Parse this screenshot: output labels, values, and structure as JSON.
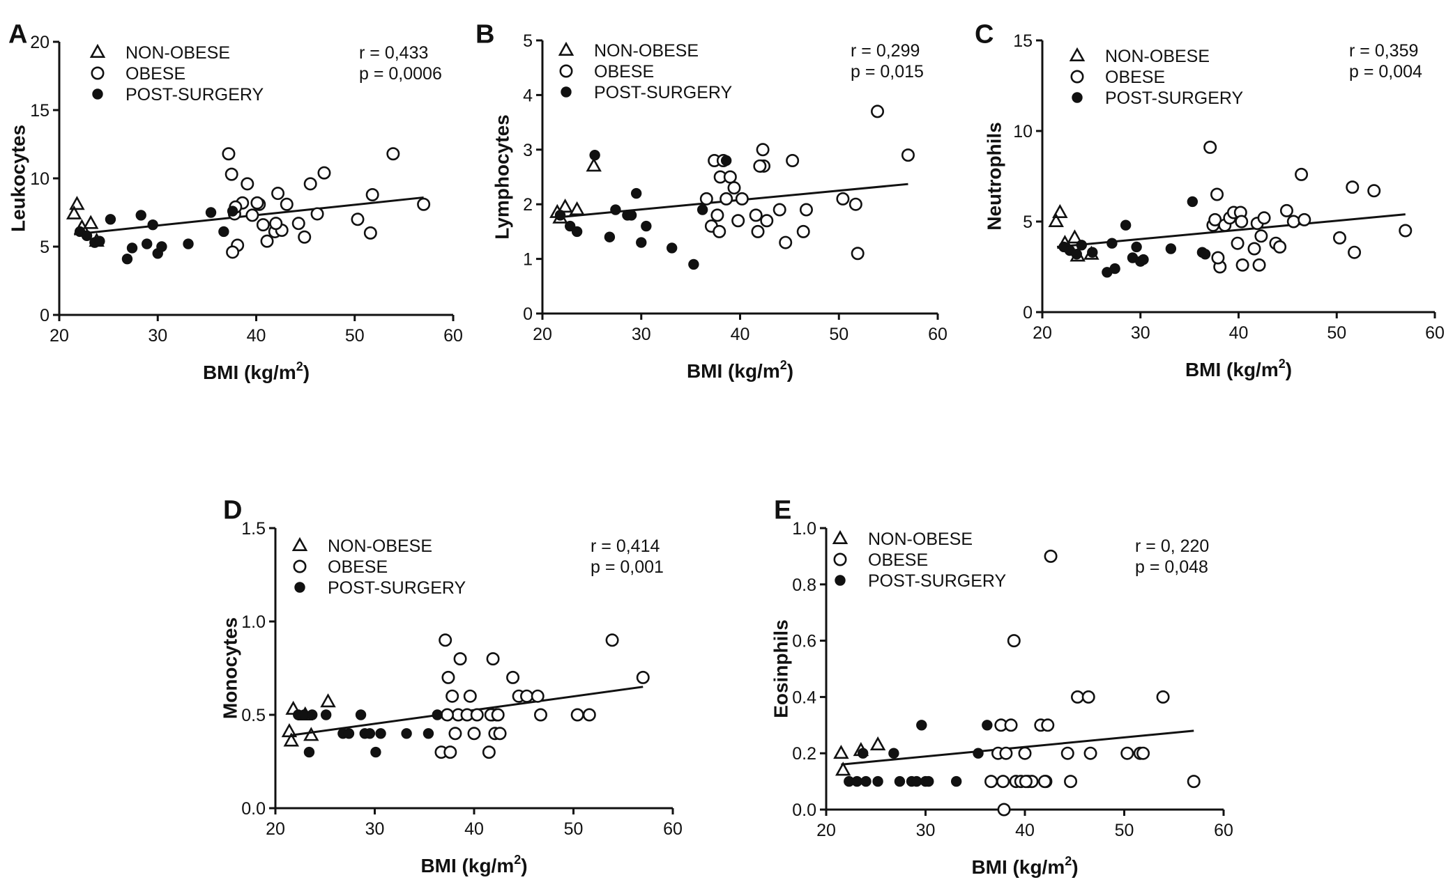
{
  "colors": {
    "ink": "#111111",
    "background": "#ffffff"
  },
  "marker_names": [
    "triangle-open",
    "circle-open",
    "circle-filled"
  ],
  "chart_data": [
    {
      "panel": "A",
      "type": "scatter",
      "ylabel": "Leukocytes",
      "xlabel": "BMI (kg/m",
      "xlabel_sup": "2",
      "xlabel_end": ")",
      "xlim": [
        20,
        60
      ],
      "ylim": [
        0,
        20
      ],
      "xticks": [
        "20",
        "30",
        "40",
        "50",
        "60"
      ],
      "yticks": [
        "0",
        "5",
        "10",
        "15",
        "20"
      ],
      "legend": [
        "NON-OBESE",
        "OBESE",
        "POST-SURGERY"
      ],
      "stat_r": "r = 0,433",
      "stat_p": "p = 0,0006",
      "fit": {
        "x": [
          21.5,
          57
        ],
        "y": [
          5.9,
          8.6
        ]
      },
      "series": [
        {
          "name": "NON-OBESE",
          "x": [
            21.5,
            21.8,
            22.3,
            23.2,
            23.8
          ],
          "y": [
            7.4,
            8.1,
            6.4,
            6.7,
            5.4
          ]
        },
        {
          "name": "OBESE",
          "x": [
            37.2,
            37.5,
            37.8,
            38.1,
            38.6,
            39.1,
            39.6,
            40.3,
            40.7,
            41.1,
            41.9,
            42.2,
            42.6,
            43.1,
            44.3,
            44.9,
            45.5,
            46.2,
            46.9,
            50.3,
            51.6,
            51.8,
            53.9,
            57.0,
            37.6,
            40.1,
            42.0,
            37.9
          ],
          "y": [
            11.8,
            10.3,
            7.4,
            5.1,
            8.2,
            9.6,
            7.3,
            8.1,
            6.6,
            5.4,
            6.1,
            8.9,
            6.2,
            8.1,
            6.7,
            5.7,
            9.6,
            7.4,
            10.4,
            7.0,
            6.0,
            8.8,
            11.8,
            8.1,
            4.6,
            8.2,
            6.7,
            7.9
          ]
        },
        {
          "name": "POST-SURGERY",
          "x": [
            22.1,
            22.8,
            23.6,
            24.1,
            25.2,
            26.9,
            27.4,
            28.3,
            28.9,
            29.5,
            30.0,
            30.4,
            33.1,
            35.4,
            36.7,
            37.6
          ],
          "y": [
            6.1,
            5.8,
            5.3,
            5.4,
            7.0,
            4.1,
            4.9,
            7.3,
            5.2,
            6.6,
            4.5,
            5.0,
            5.2,
            7.5,
            6.1,
            7.6
          ]
        }
      ]
    },
    {
      "panel": "B",
      "type": "scatter",
      "ylabel": "Lymphocytes",
      "xlabel": "BMI (kg/m",
      "xlabel_sup": "2",
      "xlabel_end": ")",
      "xlim": [
        20,
        60
      ],
      "ylim": [
        0,
        5
      ],
      "xticks": [
        "20",
        "30",
        "40",
        "50",
        "60"
      ],
      "yticks": [
        "0",
        "1",
        "2",
        "3",
        "4",
        "5"
      ],
      "legend": [
        "NON-OBESE",
        "OBESE",
        "POST-SURGERY"
      ],
      "stat_r": "r = 0,299",
      "stat_p": "p = 0,015",
      "fit": {
        "x": [
          21.5,
          57
        ],
        "y": [
          1.76,
          2.37
        ]
      },
      "series": [
        {
          "name": "NON-OBESE",
          "x": [
            21.5,
            21.8,
            22.3,
            23.5,
            25.2
          ],
          "y": [
            1.85,
            1.75,
            1.95,
            1.9,
            2.7
          ]
        },
        {
          "name": "OBESE",
          "x": [
            36.6,
            37.1,
            37.4,
            37.7,
            38.0,
            38.3,
            38.6,
            39.0,
            39.4,
            39.8,
            40.2,
            41.6,
            42.1,
            42.4,
            42.7,
            44.0,
            44.6,
            45.3,
            46.4,
            46.7,
            50.4,
            51.7,
            51.9,
            53.9,
            57.0,
            37.9,
            42.3,
            41.8,
            42.0
          ],
          "y": [
            2.1,
            1.6,
            2.8,
            1.8,
            2.5,
            2.8,
            2.1,
            2.5,
            2.3,
            1.7,
            2.1,
            1.8,
            2.7,
            2.7,
            1.7,
            1.9,
            1.3,
            2.8,
            1.5,
            1.9,
            2.1,
            2.0,
            1.1,
            3.7,
            2.9,
            1.5,
            3.0,
            1.5,
            2.7
          ]
        },
        {
          "name": "POST-SURGERY",
          "x": [
            21.8,
            22.8,
            23.5,
            25.3,
            26.8,
            27.4,
            28.6,
            29.0,
            29.5,
            30.0,
            30.5,
            33.1,
            35.3,
            36.2,
            38.6
          ],
          "y": [
            1.8,
            1.6,
            1.5,
            2.9,
            1.4,
            1.9,
            1.8,
            1.8,
            2.2,
            1.3,
            1.6,
            1.2,
            0.9,
            1.9,
            2.8
          ]
        }
      ]
    },
    {
      "panel": "C",
      "type": "scatter",
      "ylabel": "Neutrophils",
      "xlabel": "BMI (kg/m",
      "xlabel_sup": "2",
      "xlabel_end": ")",
      "xlim": [
        20,
        60
      ],
      "ylim": [
        0,
        15
      ],
      "xticks": [
        "20",
        "30",
        "40",
        "50",
        "60"
      ],
      "yticks": [
        "0",
        "5",
        "10",
        "15"
      ],
      "legend": [
        "NON-OBESE",
        "OBESE",
        "POST-SURGERY"
      ],
      "stat_r": "r = 0,359",
      "stat_p": "p = 0,004",
      "fit": {
        "x": [
          21.5,
          57
        ],
        "y": [
          3.6,
          5.4
        ]
      },
      "series": [
        {
          "name": "NON-OBESE",
          "x": [
            21.4,
            21.8,
            22.3,
            23.3,
            23.6,
            25.0
          ],
          "y": [
            5.0,
            5.5,
            3.8,
            4.1,
            3.1,
            3.2
          ]
        },
        {
          "name": "OBESE",
          "x": [
            37.1,
            37.4,
            37.6,
            37.8,
            38.1,
            38.6,
            39.1,
            39.5,
            39.9,
            40.2,
            40.4,
            41.6,
            41.9,
            42.1,
            42.3,
            42.6,
            43.8,
            44.2,
            44.9,
            45.6,
            46.4,
            46.7,
            50.3,
            51.6,
            51.8,
            53.8,
            57.0,
            37.9,
            40.3
          ],
          "y": [
            9.1,
            4.8,
            5.1,
            6.5,
            2.5,
            4.8,
            5.2,
            5.5,
            3.8,
            5.5,
            2.6,
            3.5,
            4.9,
            2.6,
            4.2,
            5.2,
            3.8,
            3.6,
            5.6,
            5.0,
            7.6,
            5.1,
            4.1,
            6.9,
            3.3,
            6.7,
            4.5,
            3.0,
            5.0
          ]
        },
        {
          "name": "POST-SURGERY",
          "x": [
            22.2,
            22.8,
            23.5,
            24.0,
            25.1,
            26.6,
            27.1,
            27.4,
            28.5,
            29.2,
            29.6,
            30.0,
            30.3,
            33.1,
            35.3,
            36.3,
            36.6
          ],
          "y": [
            3.6,
            3.4,
            3.2,
            3.7,
            3.3,
            2.2,
            3.8,
            2.4,
            4.8,
            3.0,
            3.6,
            2.8,
            2.9,
            3.5,
            6.1,
            3.3,
            3.2
          ]
        }
      ]
    },
    {
      "panel": "D",
      "type": "scatter",
      "ylabel": "Monocytes",
      "xlabel": "BMI (kg/m",
      "xlabel_sup": "2",
      "xlabel_end": ")",
      "xlim": [
        20,
        60
      ],
      "ylim": [
        0,
        1.5
      ],
      "xticks": [
        "20",
        "30",
        "40",
        "50",
        "60"
      ],
      "yticks": [
        "0.0",
        "0.5",
        "1.0",
        "1.5"
      ],
      "legend": [
        "NON-OBESE",
        "OBESE",
        "POST-SURGERY"
      ],
      "stat_r": "r = 0,414",
      "stat_p": "p = 0,001",
      "fit": {
        "x": [
          21.5,
          57
        ],
        "y": [
          0.39,
          0.65
        ]
      },
      "series": [
        {
          "name": "NON-OBESE",
          "x": [
            21.4,
            21.6,
            21.8,
            23.0,
            23.6,
            25.3
          ],
          "y": [
            0.41,
            0.36,
            0.53,
            0.5,
            0.39,
            0.57
          ]
        },
        {
          "name": "OBESE",
          "x": [
            36.7,
            37.1,
            37.4,
            37.6,
            37.8,
            38.1,
            38.4,
            38.6,
            39.3,
            39.6,
            40.0,
            40.3,
            41.5,
            41.8,
            41.9,
            42.1,
            42.3,
            42.6,
            43.9,
            44.5,
            45.3,
            46.4,
            46.7,
            50.4,
            51.6,
            53.9,
            57.0,
            37.3,
            41.7,
            42.4
          ],
          "y": [
            0.3,
            0.9,
            0.7,
            0.3,
            0.6,
            0.4,
            0.5,
            0.8,
            0.5,
            0.6,
            0.4,
            0.5,
            0.3,
            0.5,
            0.8,
            0.4,
            0.5,
            0.4,
            0.7,
            0.6,
            0.6,
            0.6,
            0.5,
            0.5,
            0.5,
            0.9,
            0.7,
            0.5,
            0.5,
            0.5
          ]
        },
        {
          "name": "POST-SURGERY",
          "x": [
            22.3,
            22.9,
            23.4,
            23.7,
            25.1,
            26.8,
            27.4,
            28.6,
            29.0,
            29.5,
            30.1,
            30.6,
            33.2,
            35.4,
            36.3
          ],
          "y": [
            0.5,
            0.5,
            0.3,
            0.5,
            0.5,
            0.4,
            0.4,
            0.5,
            0.4,
            0.4,
            0.3,
            0.4,
            0.4,
            0.4,
            0.5
          ]
        }
      ]
    },
    {
      "panel": "E",
      "type": "scatter",
      "ylabel": "Eosinphils",
      "xlabel": "BMI (kg/m",
      "xlabel_sup": "2",
      "xlabel_end": ")",
      "xlim": [
        20,
        60
      ],
      "ylim": [
        0,
        1.0
      ],
      "xticks": [
        "20",
        "30",
        "40",
        "50",
        "60"
      ],
      "yticks": [
        "0.0",
        "0.2",
        "0.4",
        "0.6",
        "0.8",
        "1.0"
      ],
      "legend": [
        "NON-OBESE",
        "OBESE",
        "POST-SURGERY"
      ],
      "stat_r": "r = 0, 220",
      "stat_p": "p = 0,048",
      "fit": {
        "x": [
          21.5,
          57
        ],
        "y": [
          0.16,
          0.28
        ]
      },
      "series": [
        {
          "name": "NON-OBESE",
          "x": [
            21.5,
            21.7,
            23.5,
            25.2
          ],
          "y": [
            0.2,
            0.14,
            0.21,
            0.23
          ]
        },
        {
          "name": "OBESE",
          "x": [
            36.6,
            37.3,
            37.6,
            37.8,
            38.1,
            38.6,
            38.9,
            39.1,
            39.6,
            40.0,
            40.3,
            40.7,
            41.6,
            42.1,
            42.3,
            42.6,
            44.3,
            44.6,
            45.3,
            46.4,
            46.6,
            50.3,
            51.6,
            51.9,
            53.9,
            57.0,
            37.9,
            42.0,
            40.1
          ],
          "y": [
            0.1,
            0.2,
            0.3,
            0.1,
            0.2,
            0.3,
            0.6,
            0.1,
            0.1,
            0.2,
            0.1,
            0.1,
            0.3,
            0.1,
            0.3,
            0.9,
            0.2,
            0.1,
            0.4,
            0.4,
            0.2,
            0.2,
            0.2,
            0.2,
            0.4,
            0.1,
            0.0,
            0.1,
            0.1
          ]
        },
        {
          "name": "POST-SURGERY",
          "x": [
            22.3,
            23.1,
            23.7,
            24.0,
            25.2,
            26.8,
            27.4,
            28.6,
            29.1,
            29.6,
            30.0,
            30.3,
            33.1,
            35.3,
            36.2
          ],
          "y": [
            0.1,
            0.1,
            0.2,
            0.1,
            0.1,
            0.2,
            0.1,
            0.1,
            0.1,
            0.3,
            0.1,
            0.1,
            0.1,
            0.2,
            0.3
          ]
        }
      ]
    }
  ]
}
